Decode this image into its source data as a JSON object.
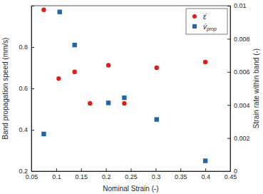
{
  "chart_data": {
    "type": "scatter",
    "x_label": "Nominal Strain (-)",
    "y_label": "Band propagation speed (mm/s)",
    "y2_label": "Strain rate within band (-)",
    "xlim": [
      0.05,
      0.45
    ],
    "xticks": [
      0.05,
      0.1,
      0.15,
      0.2,
      0.25,
      0.3,
      0.35,
      0.4,
      0.45
    ],
    "ylim": [
      0.2,
      1.0
    ],
    "yticks": [
      0.2,
      0.4,
      0.6,
      0.8
    ],
    "y2lim": [
      0,
      0.01
    ],
    "y2ticks": [
      0,
      0.002,
      0.004,
      0.006,
      0.008,
      0.01
    ],
    "grid": false,
    "legend": "upper right",
    "series": [
      {
        "name": "ε̇",
        "color": "#e31a1c",
        "marker": "circle",
        "axis": "y2",
        "x": [
          0.075,
          0.105,
          0.137,
          0.168,
          0.205,
          0.237,
          0.302,
          0.4
        ],
        "values": [
          0.00975,
          0.0056,
          0.006,
          0.0041,
          0.0064,
          0.0041,
          0.00625,
          0.0066
        ]
      },
      {
        "name": "v̇prop",
        "color": "#1f67a8",
        "marker": "square",
        "axis": "y",
        "x": [
          0.075,
          0.107,
          0.137,
          0.205,
          0.237,
          0.302,
          0.4
        ],
        "values": [
          0.38,
          0.97,
          0.81,
          0.53,
          0.555,
          0.45,
          0.25
        ]
      }
    ]
  }
}
